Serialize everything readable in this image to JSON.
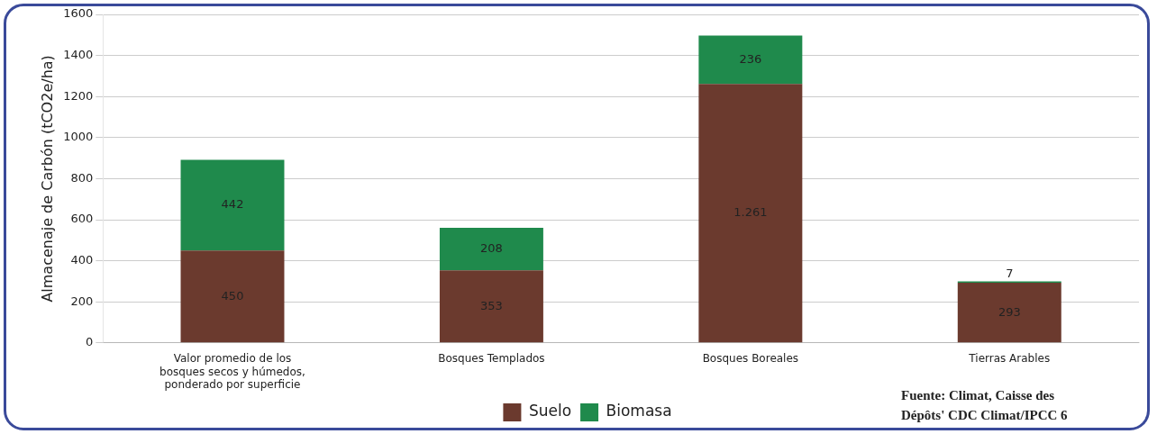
{
  "chart_data": {
    "type": "bar",
    "stacked": true,
    "ylabel": "Almacenaje de Carbón (tCO2e/ha)",
    "categories": [
      "Valor promedio de los bosques secos y húmedos, ponderado por superficie",
      "Bosques Templados",
      "Bosques Boreales",
      "Tierras Arables"
    ],
    "series": [
      {
        "name": "Suelo",
        "color": "#6b3a2e",
        "values": [
          450,
          353,
          1261,
          293
        ],
        "value_labels": [
          "450",
          "353",
          "1.261",
          "293"
        ]
      },
      {
        "name": "Biomasa",
        "color": "#1f8a4c",
        "values": [
          442,
          208,
          236,
          7
        ],
        "value_labels": [
          "442",
          "208",
          "236",
          "7"
        ]
      }
    ],
    "ylim": [
      0,
      1600
    ],
    "yticks": [
      0,
      200,
      400,
      600,
      800,
      1000,
      1200,
      1400,
      1600
    ],
    "grid": "y",
    "legend": "bottom",
    "annotations": [
      "Fuente: Climat, Caisse des Dépôts' CDC Climat/IPCC 6"
    ]
  }
}
